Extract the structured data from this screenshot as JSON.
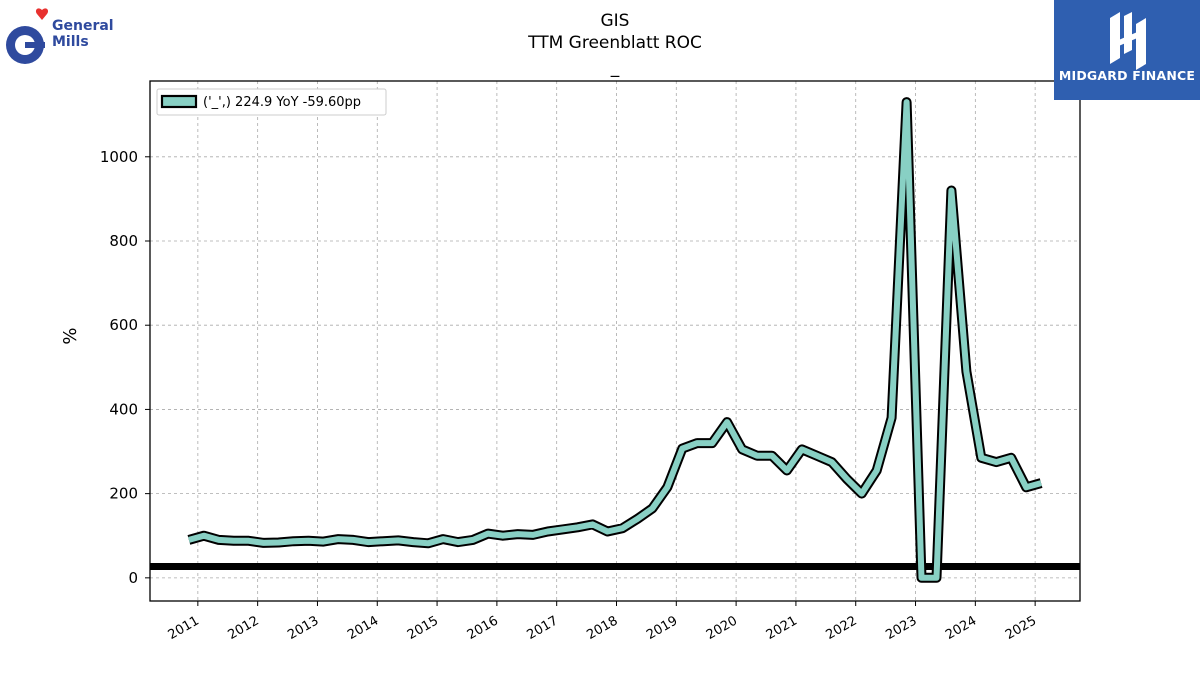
{
  "header": {
    "ticker": "GIS",
    "metric": "TTM Greenblatt ROC",
    "subtitle": "_"
  },
  "logos": {
    "company": "General Mills",
    "company_line1": "General",
    "company_line2": "Mills",
    "publisher": "MIDGARD FINANCE"
  },
  "colors": {
    "series_fill": "#88d0c4",
    "series_edge": "#000000",
    "reference_line": "#000000",
    "grid": "#aaaaaa",
    "gm_blue": "#2f4a9e",
    "gm_heart": "#e8312f",
    "midgard_bg": "#2f5fb0"
  },
  "chart_data": {
    "type": "line",
    "title": "GIS TTM Greenblatt ROC",
    "subtitle": "_",
    "ylabel": "%",
    "xlabel": "",
    "ylim": [
      -55,
      1180
    ],
    "xlim": [
      2010.2,
      2025.75
    ],
    "yticks": [
      0,
      200,
      400,
      600,
      800,
      1000
    ],
    "xticks": [
      "2011",
      "2012",
      "2013",
      "2014",
      "2015",
      "2016",
      "2017",
      "2018",
      "2019",
      "2020",
      "2021",
      "2022",
      "2023",
      "2024",
      "2025"
    ],
    "grid": true,
    "legend_position": "top-left",
    "legend_label": "('_',) 224.9 YoY -59.60pp",
    "reference_line_y": 27,
    "series": [
      {
        "name": "('_',) 224.9 YoY -59.60pp",
        "x": [
          2010.85,
          2011.1,
          2011.35,
          2011.6,
          2011.85,
          2012.1,
          2012.35,
          2012.6,
          2012.85,
          2013.1,
          2013.35,
          2013.6,
          2013.85,
          2014.1,
          2014.35,
          2014.6,
          2014.85,
          2015.1,
          2015.35,
          2015.6,
          2015.85,
          2016.1,
          2016.35,
          2016.6,
          2016.85,
          2017.1,
          2017.35,
          2017.6,
          2017.85,
          2018.1,
          2018.35,
          2018.6,
          2018.85,
          2019.1,
          2019.35,
          2019.6,
          2019.85,
          2020.1,
          2020.35,
          2020.6,
          2020.85,
          2021.1,
          2021.35,
          2021.6,
          2021.85,
          2022.1,
          2022.35,
          2022.6,
          2022.85,
          2023.1,
          2023.35,
          2023.6,
          2023.85,
          2024.1,
          2024.35,
          2024.6,
          2024.85,
          2025.1
        ],
        "values": [
          90,
          100,
          90,
          88,
          88,
          83,
          84,
          87,
          88,
          86,
          92,
          90,
          85,
          87,
          89,
          85,
          82,
          92,
          85,
          90,
          105,
          100,
          104,
          102,
          110,
          115,
          120,
          127,
          110,
          118,
          140,
          165,
          215,
          307,
          320,
          320,
          370,
          305,
          290,
          290,
          255,
          305,
          290,
          275,
          235,
          200,
          255,
          380,
          1130,
          0,
          0,
          920,
          490,
          285,
          275,
          285,
          215,
          225
        ]
      }
    ]
  }
}
